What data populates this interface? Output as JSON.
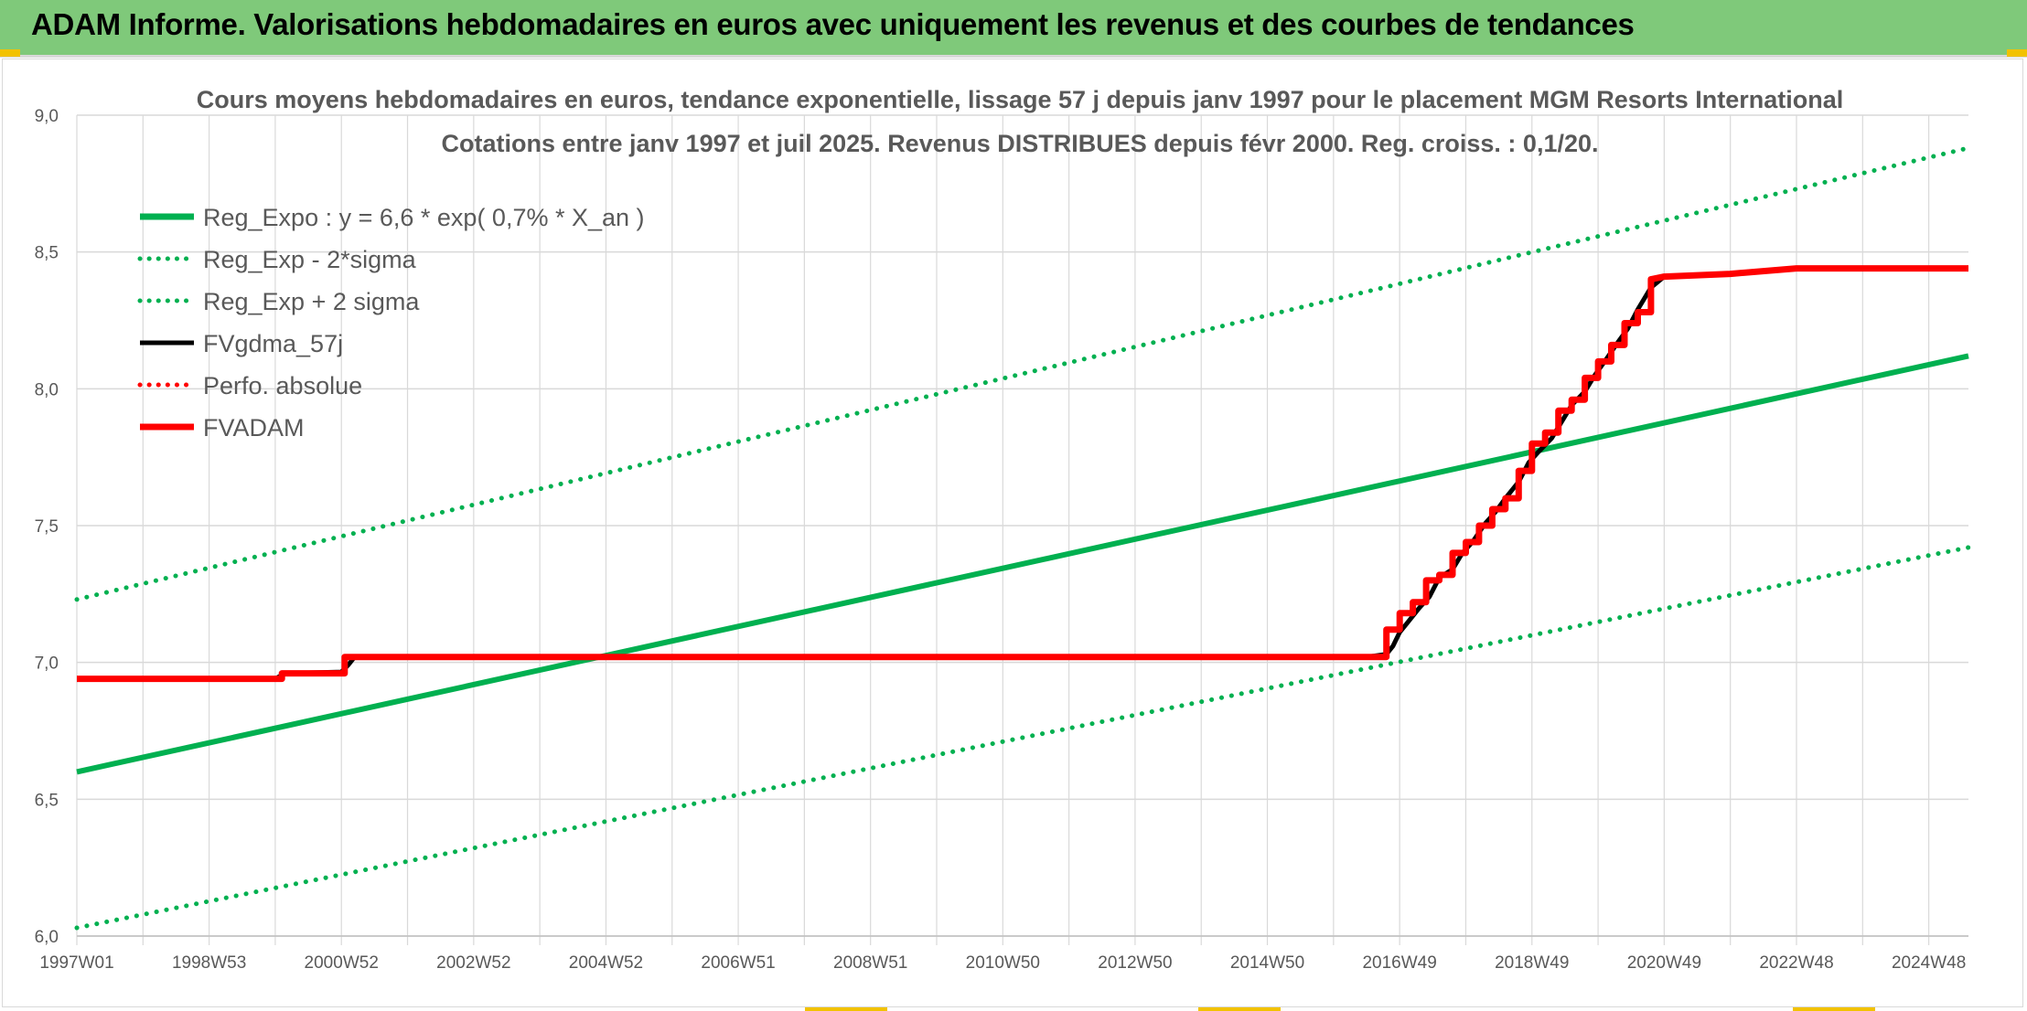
{
  "header": {
    "title": "ADAM Informe. Valorisations hebdomadaires en euros avec uniquement les revenus et des courbes de tendances"
  },
  "colors": {
    "banner": "#7fc97a",
    "green": "#00b050",
    "black": "#000000",
    "red": "#ff0000",
    "grid": "#d9d9d9",
    "text": "#595959"
  },
  "chart_data": {
    "type": "line",
    "title_lines": [
      "Cours moyens hebdomadaires en euros, tendance exponentielle, lissage 57 j depuis janv 1997 pour le placement MGM Resorts International",
      "Cotations entre janv 1997 et juil 2025. Revenus DISTRIBUES depuis févr 2000. Reg. croiss. : 0,1/20."
    ],
    "xlabel": "",
    "ylabel": "",
    "x_unit": "year",
    "xlim": [
      1997.0,
      2025.6
    ],
    "ylim": [
      6.0,
      9.0
    ],
    "y_ticks": [
      "6,0",
      "6,5",
      "7,0",
      "7,5",
      "8,0",
      "8,5",
      "9,0"
    ],
    "y_tick_values": [
      6.0,
      6.5,
      7.0,
      7.5,
      8.0,
      8.5,
      9.0
    ],
    "x_tick_labels": [
      "1997W01",
      "1998W53",
      "2000W52",
      "2002W52",
      "2004W52",
      "2006W51",
      "2008W51",
      "2010W50",
      "2012W50",
      "2014W50",
      "2016W49",
      "2018W49",
      "2020W49",
      "2022W48",
      "2024W48"
    ],
    "x_tick_values": [
      1997.0,
      1999.0,
      2001.0,
      2003.0,
      2005.0,
      2007.0,
      2009.0,
      2011.0,
      2013.0,
      2015.0,
      2017.0,
      2019.0,
      2021.0,
      2023.0,
      2025.0
    ],
    "grid": true,
    "legend_position": "top-left",
    "series": [
      {
        "name": "Reg_Expo : y = 6,6 * exp( 0,7% *  X_an )",
        "style": "solid",
        "color": "#00b050",
        "x": [
          1997.0,
          2025.6
        ],
        "y": [
          6.6,
          8.12
        ]
      },
      {
        "name": "Reg_Exp - 2*sigma",
        "style": "dotted",
        "color": "#00b050",
        "x": [
          1997.0,
          2025.6
        ],
        "y": [
          6.03,
          7.42
        ]
      },
      {
        "name": "Reg_Exp + 2 sigma",
        "style": "dotted",
        "color": "#00b050",
        "x": [
          1997.0,
          2025.6
        ],
        "y": [
          7.23,
          8.88
        ]
      },
      {
        "name": "FVgdma_57j",
        "style": "solid",
        "color": "#000000",
        "x": [
          1997.0,
          2000.0,
          2000.15,
          2001.0,
          2001.1,
          2001.2,
          2016.5,
          2016.8,
          2016.9,
          2017.0,
          2017.1,
          2017.3,
          2017.45,
          2017.6,
          2017.8,
          2017.95,
          2018.1,
          2018.3,
          2018.45,
          2018.6,
          2018.8,
          2018.95,
          2019.1,
          2019.3,
          2019.45,
          2019.6,
          2019.8,
          2019.95,
          2020.1,
          2020.3,
          2020.45,
          2020.6,
          2020.8,
          2021.0,
          2022.0,
          2023.0,
          2025.6
        ],
        "y": [
          6.94,
          6.94,
          6.96,
          6.965,
          6.99,
          7.02,
          7.02,
          7.03,
          7.06,
          7.11,
          7.14,
          7.2,
          7.24,
          7.31,
          7.34,
          7.4,
          7.44,
          7.51,
          7.55,
          7.6,
          7.66,
          7.73,
          7.77,
          7.82,
          7.88,
          7.94,
          7.99,
          8.05,
          8.1,
          8.17,
          8.22,
          8.29,
          8.37,
          8.41,
          8.42,
          8.44,
          8.44
        ]
      },
      {
        "name": "Perfo. absolue",
        "style": "dotted",
        "color": "#ff0000",
        "x": [],
        "y": []
      },
      {
        "name": "FVADAM",
        "style": "solid",
        "color": "#ff0000",
        "x": [
          1997.0,
          2000.1,
          2000.1,
          2001.05,
          2001.05,
          2016.8,
          2016.8,
          2017.0,
          2017.0,
          2017.2,
          2017.2,
          2017.4,
          2017.4,
          2017.6,
          2017.6,
          2017.8,
          2017.8,
          2018.0,
          2018.0,
          2018.2,
          2018.2,
          2018.4,
          2018.4,
          2018.6,
          2018.6,
          2018.8,
          2018.8,
          2019.0,
          2019.0,
          2019.2,
          2019.2,
          2019.4,
          2019.4,
          2019.6,
          2019.6,
          2019.8,
          2019.8,
          2020.0,
          2020.0,
          2020.2,
          2020.2,
          2020.4,
          2020.4,
          2020.6,
          2020.6,
          2020.8,
          2020.8,
          2021.0,
          2022.0,
          2023.0,
          2025.6
        ],
        "y": [
          6.94,
          6.94,
          6.96,
          6.96,
          7.02,
          7.02,
          7.12,
          7.12,
          7.18,
          7.18,
          7.22,
          7.22,
          7.3,
          7.3,
          7.32,
          7.32,
          7.4,
          7.4,
          7.44,
          7.44,
          7.5,
          7.5,
          7.56,
          7.56,
          7.6,
          7.6,
          7.7,
          7.7,
          7.8,
          7.8,
          7.84,
          7.84,
          7.92,
          7.92,
          7.96,
          7.96,
          8.04,
          8.04,
          8.1,
          8.1,
          8.16,
          8.16,
          8.24,
          8.24,
          8.28,
          8.28,
          8.4,
          8.41,
          8.42,
          8.44,
          8.44
        ]
      }
    ]
  }
}
